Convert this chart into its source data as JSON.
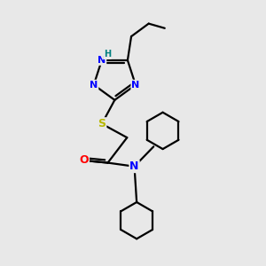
{
  "bg_color": "#e8e8e8",
  "atom_colors": {
    "C": "#000000",
    "N": "#0000ff",
    "O": "#ff0000",
    "S": "#b8b800",
    "H": "#008080"
  },
  "bond_color": "#000000",
  "bond_width": 1.6,
  "figsize": [
    3.0,
    3.0
  ],
  "dpi": 100
}
